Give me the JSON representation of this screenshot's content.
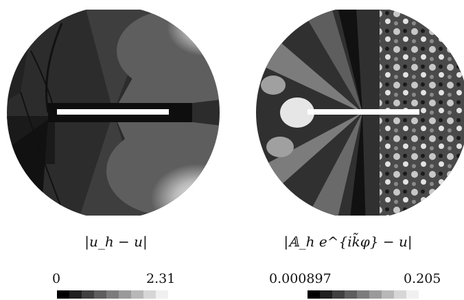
{
  "panels": [
    {
      "label": "|u_h − u|",
      "min_label": "0",
      "max_label": "2.31"
    },
    {
      "label": "|𝔸_h e^{ik̃φ} − u|",
      "min_label": "0.000897",
      "max_label": "0.205"
    }
  ],
  "colorbar_colors": [
    "#000000",
    "#202020",
    "#404040",
    "#5e5e5e",
    "#7c7c7c",
    "#9a9a9a",
    "#b8b8b8",
    "#d6d6d6",
    "#f0f0f0"
  ]
}
